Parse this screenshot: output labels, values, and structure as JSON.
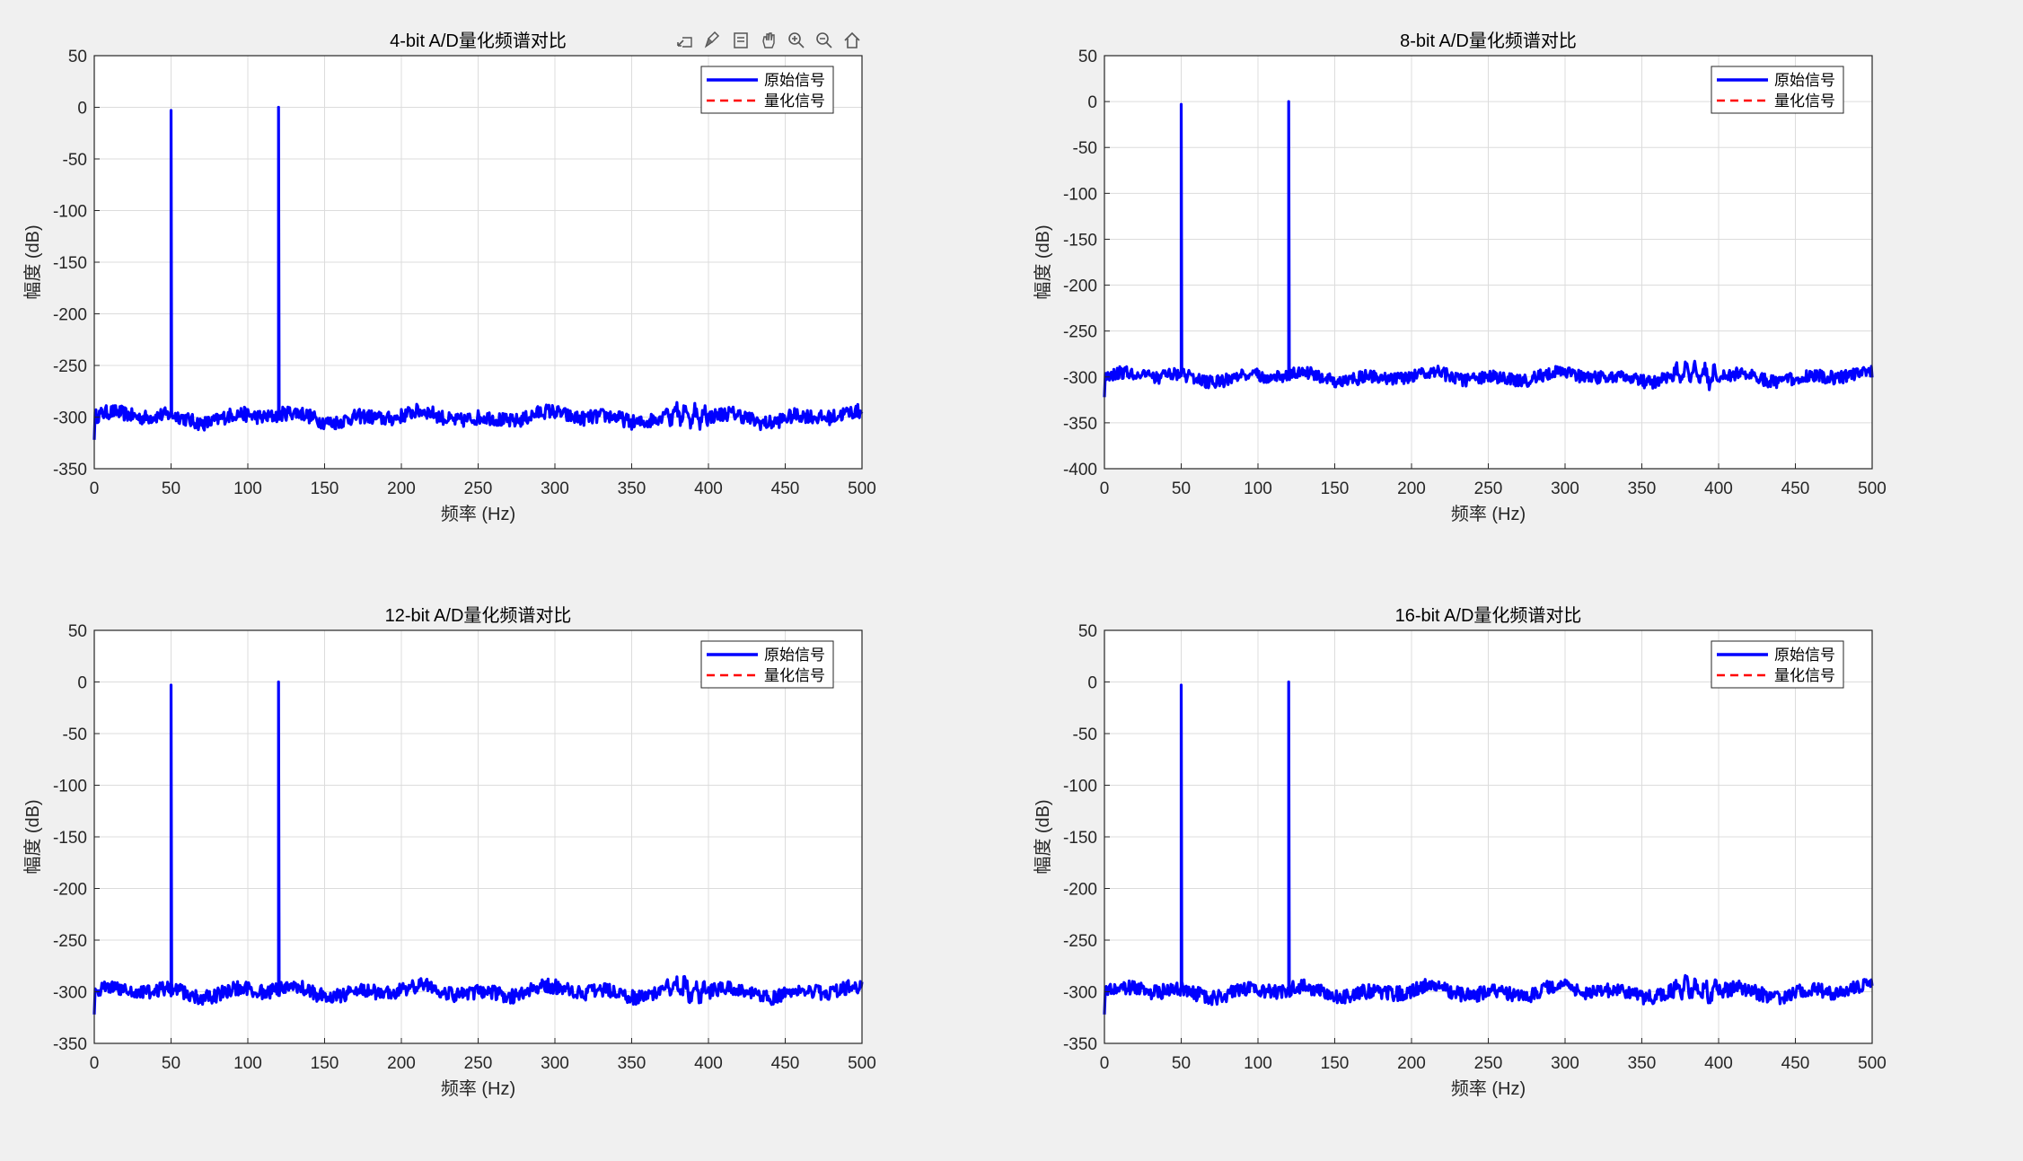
{
  "window": {
    "background": "#f0f0f0"
  },
  "toolbar": {
    "buttons": [
      {
        "name": "export-icon",
        "label": ""
      },
      {
        "name": "brush-icon",
        "label": ""
      },
      {
        "name": "datatip-icon",
        "label": ""
      },
      {
        "name": "pan-hand-icon",
        "label": ""
      },
      {
        "name": "zoom-in-icon",
        "label": ""
      },
      {
        "name": "zoom-out-icon",
        "label": ""
      },
      {
        "name": "home-icon",
        "label": ""
      }
    ]
  },
  "colors": {
    "original": "#0000ff",
    "quantized": "#ff0000",
    "grid": "#dcdcdc",
    "axes": "#262626"
  },
  "chart_data": [
    {
      "type": "line",
      "title": "4-bit A/D量化频谱对比",
      "xlabel": "频率 (Hz)",
      "ylabel": "幅度 (dB)",
      "xlim": [
        0,
        500
      ],
      "ylim": [
        -350,
        50
      ],
      "xticks": [
        "0",
        "50",
        "100",
        "150",
        "200",
        "250",
        "300",
        "350",
        "400",
        "450",
        "500"
      ],
      "yticks": [
        "50",
        "0",
        "-50",
        "-100",
        "-150",
        "-200",
        "-250",
        "-300",
        "-350"
      ],
      "grid": true,
      "legend": "top-right",
      "series": [
        {
          "name": "原始信号",
          "style": "solid",
          "peaks": [
            {
              "x": 50,
              "y": -3
            },
            {
              "x": 120,
              "y": 0
            }
          ],
          "noise_floor": -300
        },
        {
          "name": "量化信号",
          "style": "dashed",
          "peaks": [],
          "noise_floor": null
        }
      ]
    },
    {
      "type": "line",
      "title": "8-bit A/D量化频谱对比",
      "xlabel": "频率 (Hz)",
      "ylabel": "幅度 (dB)",
      "xlim": [
        0,
        500
      ],
      "ylim": [
        -400,
        50
      ],
      "xticks": [
        "0",
        "50",
        "100",
        "150",
        "200",
        "250",
        "300",
        "350",
        "400",
        "450",
        "500"
      ],
      "yticks": [
        "50",
        "0",
        "-50",
        "-100",
        "-150",
        "-200",
        "-250",
        "-300",
        "-350",
        "-400"
      ],
      "grid": true,
      "legend": "top-right",
      "series": [
        {
          "name": "原始信号",
          "style": "solid",
          "peaks": [
            {
              "x": 50,
              "y": -3
            },
            {
              "x": 120,
              "y": 0
            }
          ],
          "noise_floor": -300
        },
        {
          "name": "量化信号",
          "style": "dashed",
          "peaks": [],
          "noise_floor": null
        }
      ]
    },
    {
      "type": "line",
      "title": "12-bit A/D量化频谱对比",
      "xlabel": "频率 (Hz)",
      "ylabel": "幅度 (dB)",
      "xlim": [
        0,
        500
      ],
      "ylim": [
        -350,
        50
      ],
      "xticks": [
        "0",
        "50",
        "100",
        "150",
        "200",
        "250",
        "300",
        "350",
        "400",
        "450",
        "500"
      ],
      "yticks": [
        "50",
        "0",
        "-50",
        "-100",
        "-150",
        "-200",
        "-250",
        "-300",
        "-350"
      ],
      "grid": true,
      "legend": "top-right",
      "series": [
        {
          "name": "原始信号",
          "style": "solid",
          "peaks": [
            {
              "x": 50,
              "y": -3
            },
            {
              "x": 120,
              "y": 0
            }
          ],
          "noise_floor": -300
        },
        {
          "name": "量化信号",
          "style": "dashed",
          "peaks": [],
          "noise_floor": null
        }
      ]
    },
    {
      "type": "line",
      "title": "16-bit A/D量化频谱对比",
      "xlabel": "频率 (Hz)",
      "ylabel": "幅度 (dB)",
      "xlim": [
        0,
        500
      ],
      "ylim": [
        -350,
        50
      ],
      "xticks": [
        "0",
        "50",
        "100",
        "150",
        "200",
        "250",
        "300",
        "350",
        "400",
        "450",
        "500"
      ],
      "yticks": [
        "50",
        "0",
        "-50",
        "-100",
        "-150",
        "-200",
        "-250",
        "-300",
        "-350"
      ],
      "grid": true,
      "legend": "top-right",
      "series": [
        {
          "name": "原始信号",
          "style": "solid",
          "peaks": [
            {
              "x": 50,
              "y": -3
            },
            {
              "x": 120,
              "y": 0
            }
          ],
          "noise_floor": -300
        },
        {
          "name": "量化信号",
          "style": "dashed",
          "peaks": [],
          "noise_floor": null
        }
      ]
    }
  ]
}
